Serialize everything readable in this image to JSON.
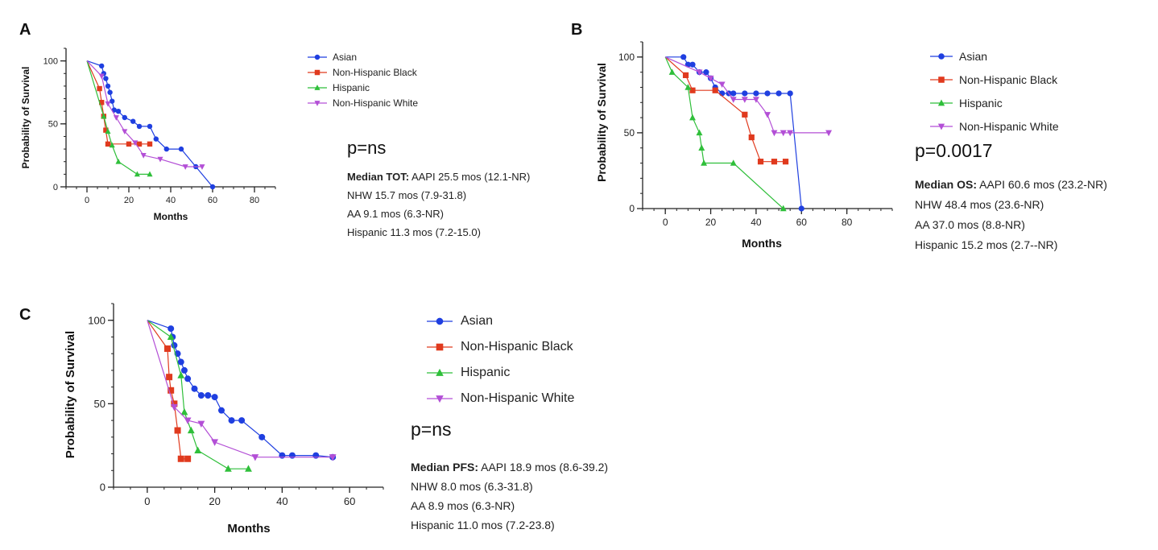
{
  "chart_data": [
    {
      "panel": "A",
      "type": "line",
      "xlabel": "Months",
      "ylabel": "Probability of Survival",
      "xlim": [
        -10,
        90
      ],
      "ylim": [
        0,
        110
      ],
      "xticks": [
        "0",
        "20",
        "40",
        "60",
        "80"
      ],
      "yticks": [
        "0",
        "50",
        "100"
      ],
      "legend_position": "right",
      "series": [
        {
          "name": "Asian",
          "color": "#1f3fe0",
          "marker": "circle",
          "step": false,
          "x": [
            0,
            7,
            8,
            9,
            10,
            11,
            12,
            13,
            15,
            18,
            22,
            25,
            30,
            33,
            38,
            45,
            52,
            60
          ],
          "y": [
            100,
            96,
            90,
            86,
            80,
            75,
            68,
            61,
            60,
            55,
            52,
            48,
            48,
            38,
            30,
            30,
            16,
            0
          ]
        },
        {
          "name": "Non-Hispanic Black",
          "color": "#e03a1e",
          "marker": "square",
          "step": false,
          "x": [
            0,
            6,
            7,
            8,
            9,
            10,
            20,
            25,
            30
          ],
          "y": [
            100,
            78,
            67,
            56,
            45,
            34,
            34,
            34,
            34
          ]
        },
        {
          "name": "Hispanic",
          "color": "#2fbf3a",
          "marker": "triangle",
          "step": false,
          "x": [
            0,
            8,
            10,
            12,
            15,
            24,
            30
          ],
          "y": [
            100,
            56,
            44,
            33,
            20,
            10,
            10
          ]
        },
        {
          "name": "Non-Hispanic White",
          "color": "#b34fd6",
          "marker": "triangle-down",
          "step": false,
          "x": [
            0,
            7,
            10,
            14,
            18,
            23,
            27,
            35,
            47,
            55
          ],
          "y": [
            100,
            88,
            66,
            55,
            44,
            35,
            25,
            22,
            16,
            16
          ]
        }
      ],
      "p_value": "p=ns",
      "stats": [
        {
          "bold": "Median TOT:",
          "text": " AAPI 25.5 mos (12.1-NR)"
        },
        {
          "bold": "",
          "text": "NHW 15.7 mos (7.9-31.8)"
        },
        {
          "bold": "",
          "text": "AA 9.1  mos (6.3-NR)"
        },
        {
          "bold": "",
          "text": "Hispanic 11.3 mos (7.2-15.0)"
        }
      ]
    },
    {
      "panel": "B",
      "type": "line",
      "xlabel": "Months",
      "ylabel": "Probability of Survival",
      "xlim": [
        -10,
        100
      ],
      "ylim": [
        0,
        110
      ],
      "xticks": [
        "0",
        "20",
        "40",
        "60",
        "80"
      ],
      "yticks": [
        "0",
        "50",
        "100"
      ],
      "legend_position": "right",
      "series": [
        {
          "name": "Asian",
          "color": "#1f3fe0",
          "marker": "circle",
          "step": false,
          "x": [
            0,
            8,
            10,
            12,
            15,
            18,
            20,
            22,
            25,
            28,
            30,
            35,
            40,
            45,
            50,
            55,
            60
          ],
          "y": [
            100,
            100,
            95,
            95,
            90,
            90,
            86,
            80,
            76,
            76,
            76,
            76,
            76,
            76,
            76,
            76,
            0
          ]
        },
        {
          "name": "Non-Hispanic Black",
          "color": "#e03a1e",
          "marker": "square",
          "step": false,
          "x": [
            0,
            9,
            12,
            22,
            35,
            38,
            42,
            48,
            53
          ],
          "y": [
            100,
            88,
            78,
            78,
            62,
            47,
            31,
            31,
            31
          ]
        },
        {
          "name": "Hispanic",
          "color": "#2fbf3a",
          "marker": "triangle",
          "step": false,
          "x": [
            0,
            3,
            10,
            12,
            15,
            16,
            17,
            30,
            52
          ],
          "y": [
            100,
            90,
            80,
            60,
            50,
            40,
            30,
            30,
            0
          ]
        },
        {
          "name": "Non-Hispanic White",
          "color": "#b34fd6",
          "marker": "triangle-down",
          "step": false,
          "x": [
            0,
            15,
            20,
            25,
            30,
            35,
            40,
            45,
            48,
            52,
            55,
            72
          ],
          "y": [
            100,
            90,
            86,
            82,
            72,
            72,
            72,
            62,
            50,
            50,
            50,
            50
          ]
        }
      ],
      "p_value": "p=0.0017",
      "stats": [
        {
          "bold": "Median OS:",
          "text": " AAPI 60.6 mos (23.2-NR)"
        },
        {
          "bold": "",
          "text": "NHW 48.4 mos (23.6-NR)"
        },
        {
          "bold": "",
          "text": "AA 37.0 mos (8.8-NR)"
        },
        {
          "bold": "",
          "text": "Hispanic 15.2 mos (2.7--NR)"
        }
      ]
    },
    {
      "panel": "C",
      "type": "line",
      "xlabel": "Months",
      "ylabel": "Probability of Survival",
      "xlim": [
        -10,
        70
      ],
      "ylim": [
        0,
        110
      ],
      "xticks": [
        "0",
        "20",
        "40",
        "60"
      ],
      "yticks": [
        "0",
        "50",
        "100"
      ],
      "legend_position": "right",
      "series": [
        {
          "name": "Asian",
          "color": "#1f3fe0",
          "marker": "circle",
          "step": false,
          "x": [
            0,
            7,
            7.5,
            8,
            9,
            10,
            11,
            12,
            14,
            16,
            18,
            20,
            22,
            25,
            28,
            34,
            40,
            43,
            50,
            55
          ],
          "y": [
            100,
            95,
            90,
            85,
            80,
            75,
            70,
            65,
            59,
            55,
            55,
            54,
            46,
            40,
            40,
            30,
            19,
            19,
            19,
            18
          ]
        },
        {
          "name": "Non-Hispanic Black",
          "color": "#e03a1e",
          "marker": "square",
          "step": false,
          "x": [
            0,
            6,
            6.5,
            7,
            8,
            9,
            10,
            12
          ],
          "y": [
            100,
            83,
            66,
            58,
            50,
            34,
            17,
            17
          ]
        },
        {
          "name": "Hispanic",
          "color": "#2fbf3a",
          "marker": "triangle",
          "step": false,
          "x": [
            0,
            7,
            10,
            11,
            13,
            15,
            24,
            30
          ],
          "y": [
            100,
            90,
            67,
            45,
            34,
            22,
            11,
            11
          ]
        },
        {
          "name": "Non-Hispanic White",
          "color": "#b34fd6",
          "marker": "triangle-down",
          "step": false,
          "x": [
            0,
            8,
            12,
            16,
            20,
            32,
            55
          ],
          "y": [
            100,
            48,
            40,
            38,
            27,
            18,
            18
          ]
        }
      ],
      "p_value": "p=ns",
      "stats": [
        {
          "bold": "Median PFS:",
          "text": " AAPI 18.9 mos (8.6-39.2)"
        },
        {
          "bold": "",
          "text": "NHW 8.0 mos (6.3-31.8)"
        },
        {
          "bold": "",
          "text": "AA 8.9  mos (6.3-NR)"
        },
        {
          "bold": "",
          "text": "Hispanic 11.0 mos (7.2-23.8)"
        }
      ]
    }
  ]
}
